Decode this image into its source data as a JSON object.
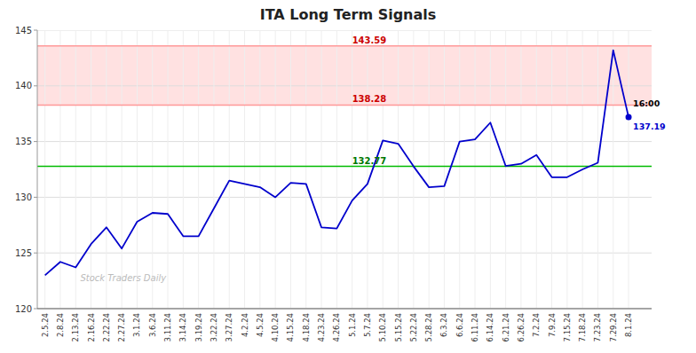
{
  "chart_data": {
    "type": "line",
    "title": "ITA Long Term Signals",
    "categories": [
      "2.5.24",
      "2.8.24",
      "2.13.24",
      "2.16.24",
      "2.22.24",
      "2.27.24",
      "3.1.24",
      "3.6.24",
      "3.11.24",
      "3.14.24",
      "3.19.24",
      "3.22.24",
      "3.27.24",
      "4.2.24",
      "4.5.24",
      "4.10.24",
      "4.15.24",
      "4.18.24",
      "4.23.24",
      "4.26.24",
      "5.1.24",
      "5.7.24",
      "5.10.24",
      "5.15.24",
      "5.22.24",
      "5.28.24",
      "6.3.24",
      "6.6.24",
      "6.11.24",
      "6.14.24",
      "6.21.24",
      "6.26.24",
      "7.2.24",
      "7.9.24",
      "7.15.24",
      "7.18.24",
      "7.23.24",
      "7.29.24",
      "8.1.24"
    ],
    "values": [
      123.0,
      124.2,
      123.7,
      125.8,
      127.3,
      125.4,
      127.8,
      128.6,
      128.5,
      126.5,
      126.5,
      129.0,
      131.5,
      131.2,
      130.9,
      130.0,
      131.3,
      131.2,
      127.3,
      127.2,
      129.7,
      131.2,
      135.1,
      134.8,
      132.77,
      130.9,
      131.0,
      135.0,
      135.2,
      136.7,
      132.8,
      133.0,
      133.8,
      131.8,
      131.8,
      132.5,
      133.1,
      143.2,
      137.19
    ],
    "color": "#0000cc",
    "ylim": [
      120,
      145
    ],
    "yticks": [
      120,
      125,
      130,
      135,
      140,
      145
    ],
    "grid": true,
    "reference_lines": [
      {
        "value": 132.77,
        "label": "132.77",
        "color": "#00bb00",
        "label_color": "#007700"
      },
      {
        "value": 138.28,
        "label": "138.28",
        "color": "#ff9999",
        "label_color": "#cc0000"
      },
      {
        "value": 143.59,
        "label": "143.59",
        "color": "#ff9999",
        "label_color": "#cc0000"
      }
    ],
    "band": {
      "from": 138.28,
      "to": 143.59,
      "color": "#ffaaaa"
    },
    "last_point": {
      "value": 137.19,
      "label": "137.19",
      "time": "16:00",
      "color": "#0000cc"
    },
    "watermark": "Stock Traders Daily"
  }
}
